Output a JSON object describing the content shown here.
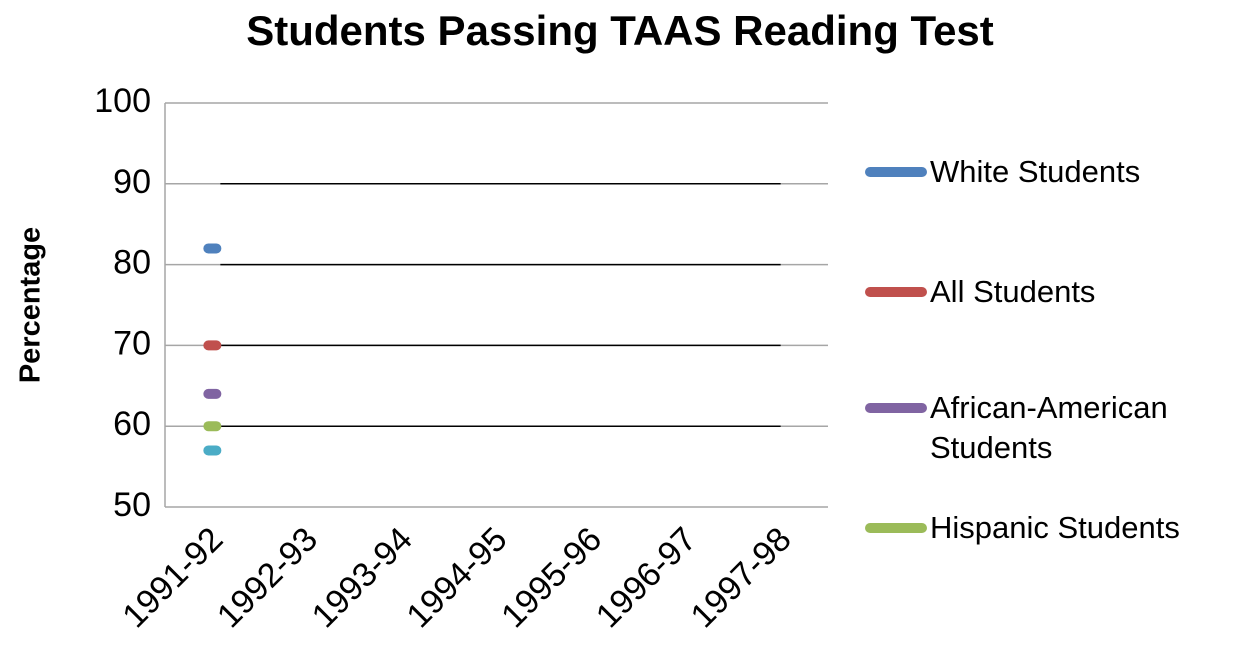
{
  "chart_data": {
    "type": "line",
    "title": "Students Passing TAAS Reading Test",
    "ylabel": "Percentage",
    "categories": [
      "1991-92",
      "1992-93",
      "1993-94",
      "1994-95",
      "1995-96",
      "1996-97",
      "1997-98"
    ],
    "series": [
      {
        "name": "White Students",
        "color": "#4f81bd",
        "values": [
          82,
          null,
          null,
          null,
          null,
          null,
          null
        ]
      },
      {
        "name": "All Students",
        "color": "#c0504d",
        "values": [
          70,
          null,
          null,
          null,
          null,
          null,
          null
        ]
      },
      {
        "name": "African-American Students",
        "color": "#8064a2",
        "values": [
          64,
          null,
          null,
          null,
          null,
          null,
          null
        ]
      },
      {
        "name": "Hispanic Students",
        "color": "#9bbb59",
        "values": [
          60,
          null,
          null,
          null,
          null,
          null,
          null
        ]
      },
      {
        "color": "#4bacc6",
        "values": [
          57,
          null,
          null,
          null,
          null,
          null,
          null
        ]
      }
    ],
    "ylim": [
      50,
      100
    ],
    "yticks": [
      50,
      60,
      70,
      80,
      90,
      100
    ],
    "grid": true,
    "legend": "right"
  }
}
